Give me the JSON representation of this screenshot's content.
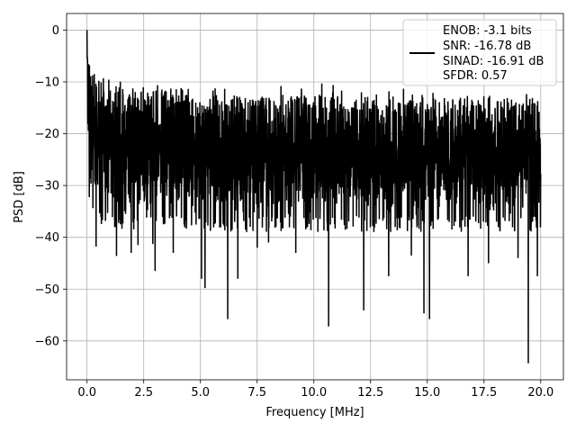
{
  "chart_data": {
    "type": "line",
    "xlabel": "Frequency [MHz]",
    "ylabel": "PSD [dB]",
    "xlim": [
      -0.9,
      21.0
    ],
    "ylim": [
      -67.5,
      3.2
    ],
    "xticks": [
      0.0,
      2.5,
      5.0,
      7.5,
      10.0,
      12.5,
      15.0,
      17.5,
      20.0
    ],
    "xtick_labels": [
      "0.0",
      "2.5",
      "5.0",
      "7.5",
      "10.0",
      "12.5",
      "15.0",
      "17.5",
      "20.0"
    ],
    "yticks": [
      0,
      -10,
      -20,
      -30,
      -40,
      -50,
      -60
    ],
    "ytick_labels": [
      "0",
      "−10",
      "−20",
      "−30",
      "−40",
      "−50",
      "−60"
    ],
    "grid": true,
    "legend_position": "top-right",
    "series": [
      {
        "color": "#000000",
        "legend_lines": [
          "ENOB: -3.1 bits",
          "SNR: -16.78 dB",
          "SINAD: -16.91 dB",
          "SFDR: 0.57"
        ],
        "x_range": [
          0.0,
          20.0
        ],
        "envelope": {
          "x": [
            0.0,
            0.05,
            0.1,
            0.3,
            0.5,
            1.0,
            2.5,
            5.0,
            7.5,
            10.0,
            12.5,
            15.0,
            17.5,
            20.0
          ],
          "upper": [
            0.0,
            -3.0,
            -6.0,
            -8.0,
            -9.5,
            -10.5,
            -11.5,
            -12.0,
            -12.5,
            -12.5,
            -13.0,
            -13.0,
            -13.0,
            -13.0
          ],
          "lower": [
            -16.0,
            -28.0,
            -33.0,
            -37.0,
            -38.0,
            -39.0,
            -39.0,
            -39.0,
            -39.0,
            -39.0,
            -39.0,
            -39.0,
            -39.0,
            -39.0
          ]
        },
        "deep_dips": [
          {
            "x": 0.4,
            "y": -41.8
          },
          {
            "x": 1.3,
            "y": -43.6
          },
          {
            "x": 1.95,
            "y": -43.0
          },
          {
            "x": 2.25,
            "y": -41.5
          },
          {
            "x": 2.9,
            "y": -41.3
          },
          {
            "x": 3.0,
            "y": -46.5
          },
          {
            "x": 3.8,
            "y": -43.0
          },
          {
            "x": 5.2,
            "y": -49.8
          },
          {
            "x": 5.05,
            "y": -48.0
          },
          {
            "x": 6.2,
            "y": -55.8
          },
          {
            "x": 6.65,
            "y": -48.0
          },
          {
            "x": 7.5,
            "y": -42.0
          },
          {
            "x": 8.0,
            "y": -41.0
          },
          {
            "x": 9.2,
            "y": -43.0
          },
          {
            "x": 10.65,
            "y": -57.2
          },
          {
            "x": 12.2,
            "y": -54.1
          },
          {
            "x": 13.3,
            "y": -47.5
          },
          {
            "x": 14.3,
            "y": -43.5
          },
          {
            "x": 14.85,
            "y": -54.7
          },
          {
            "x": 15.1,
            "y": -55.8
          },
          {
            "x": 16.8,
            "y": -47.5
          },
          {
            "x": 17.7,
            "y": -45.0
          },
          {
            "x": 19.0,
            "y": -44.0
          },
          {
            "x": 19.45,
            "y": -64.3
          },
          {
            "x": 19.85,
            "y": -47.5
          }
        ],
        "tall_peaks": [
          {
            "x": 4.15,
            "y": -11.2
          },
          {
            "x": 8.55,
            "y": -10.8
          },
          {
            "x": 10.35,
            "y": -10.3
          },
          {
            "x": 10.85,
            "y": -10.6
          },
          {
            "x": 12.1,
            "y": -12.0
          },
          {
            "x": 13.95,
            "y": -11.3
          },
          {
            "x": 14.8,
            "y": -13.0
          }
        ]
      }
    ]
  }
}
